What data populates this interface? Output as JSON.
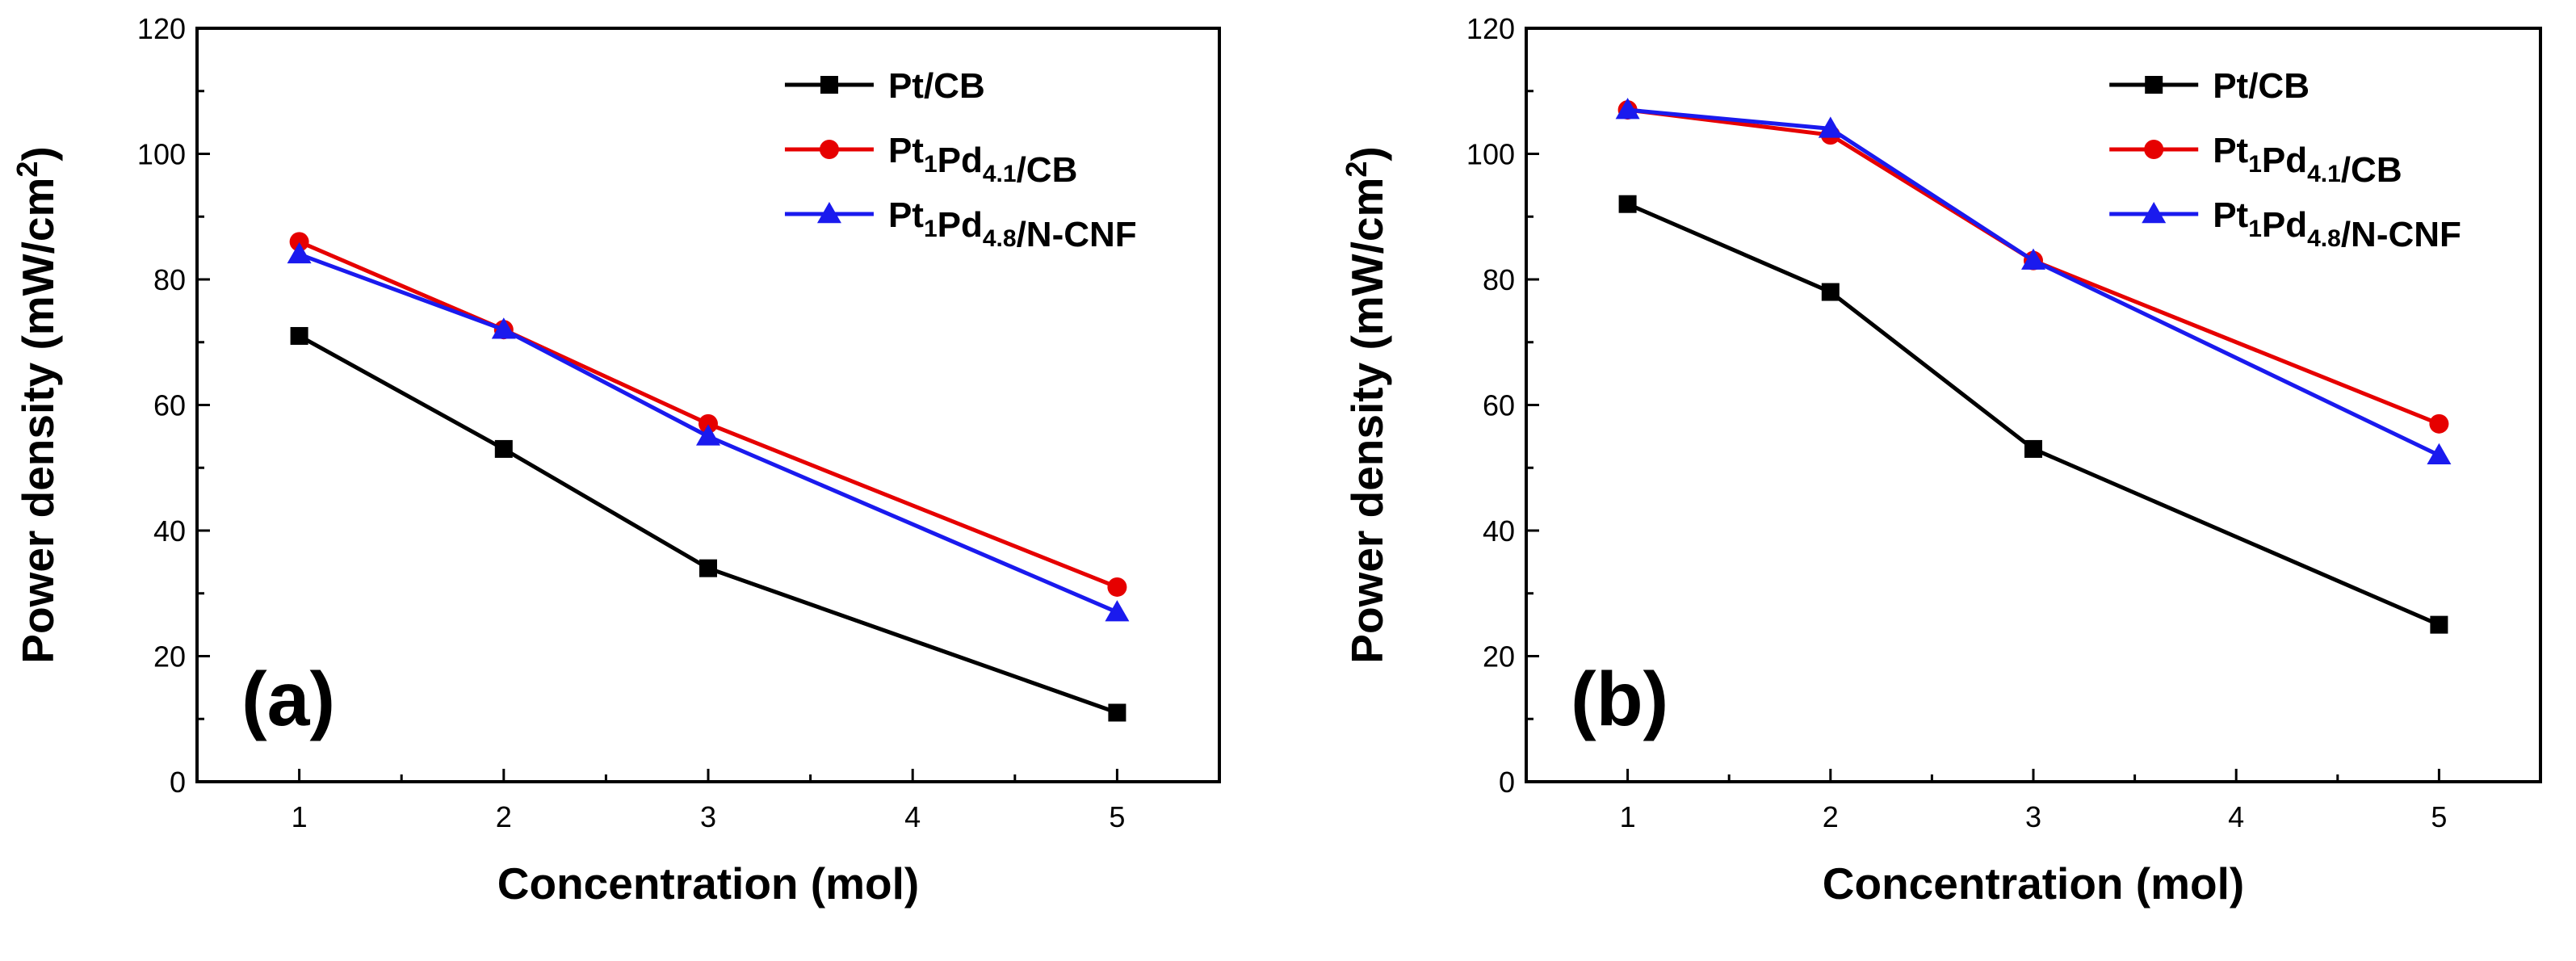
{
  "colors": {
    "Pt/CB": "#000000",
    "Pt1Pd4.1/CB": "#e60000",
    "Pt1Pd4.8/N-CNF": "#1a1aee",
    "axis": "#000000",
    "background": "#ffffff"
  },
  "chart_data": [
    {
      "type": "line",
      "panel_label": "(a)",
      "xlabel": "Concentration (mol)",
      "ylabel": "Power density (mW/cm²)",
      "ylabel_parts": {
        "main": "Power density (mW/cm",
        "sup": "2",
        "tail": ")"
      },
      "xlim": [
        0.5,
        5.5
      ],
      "ylim": [
        0,
        120
      ],
      "xticks": [
        1,
        2,
        3,
        4,
        5
      ],
      "yticks": [
        0,
        20,
        40,
        60,
        80,
        100,
        120
      ],
      "legend_position": "top-right",
      "series": [
        {
          "name": "Pt/CB",
          "label_main": "Pt/CB",
          "label_parts": [
            {
              "t": "Pt/CB"
            }
          ],
          "marker": "square",
          "x": [
            1,
            2,
            3,
            5
          ],
          "values": [
            71,
            53,
            34,
            11
          ]
        },
        {
          "name": "Pt1Pd4.1/CB",
          "label_parts": [
            {
              "t": "Pt"
            },
            {
              "sub": "1"
            },
            {
              "t": "Pd"
            },
            {
              "sub": "4.1"
            },
            {
              "t": "/CB"
            }
          ],
          "marker": "circle",
          "x": [
            1,
            2,
            3,
            5
          ],
          "values": [
            86,
            72,
            57,
            31
          ]
        },
        {
          "name": "Pt1Pd4.8/N-CNF",
          "label_parts": [
            {
              "t": "Pt"
            },
            {
              "sub": "1"
            },
            {
              "t": "Pd"
            },
            {
              "sub": "4.8"
            },
            {
              "t": "/N-CNF"
            }
          ],
          "marker": "triangle",
          "x": [
            1,
            2,
            3,
            5
          ],
          "values": [
            84,
            72,
            55,
            27
          ]
        }
      ]
    },
    {
      "type": "line",
      "panel_label": "(b)",
      "xlabel": "Concentration (mol)",
      "ylabel": "Power density (mW/cm²)",
      "ylabel_parts": {
        "main": "Power density (mW/cm",
        "sup": "2",
        "tail": ")"
      },
      "xlim": [
        0.5,
        5.5
      ],
      "ylim": [
        0,
        120
      ],
      "xticks": [
        1,
        2,
        3,
        4,
        5
      ],
      "yticks": [
        0,
        20,
        40,
        60,
        80,
        100,
        120
      ],
      "legend_position": "top-right",
      "series": [
        {
          "name": "Pt/CB",
          "label_parts": [
            {
              "t": "Pt/CB"
            }
          ],
          "marker": "square",
          "x": [
            1,
            2,
            3,
            5
          ],
          "values": [
            92,
            78,
            53,
            25
          ]
        },
        {
          "name": "Pt1Pd4.1/CB",
          "label_parts": [
            {
              "t": "Pt"
            },
            {
              "sub": "1"
            },
            {
              "t": "Pd"
            },
            {
              "sub": "4.1"
            },
            {
              "t": "/CB"
            }
          ],
          "marker": "circle",
          "x": [
            1,
            2,
            3,
            5
          ],
          "values": [
            107,
            103,
            83,
            57
          ]
        },
        {
          "name": "Pt1Pd4.8/N-CNF",
          "label_parts": [
            {
              "t": "Pt"
            },
            {
              "sub": "1"
            },
            {
              "t": "Pd"
            },
            {
              "sub": "4.8"
            },
            {
              "t": "/N-CNF"
            }
          ],
          "marker": "triangle",
          "x": [
            1,
            2,
            3,
            5
          ],
          "values": [
            107,
            104,
            83,
            52
          ]
        }
      ]
    }
  ]
}
